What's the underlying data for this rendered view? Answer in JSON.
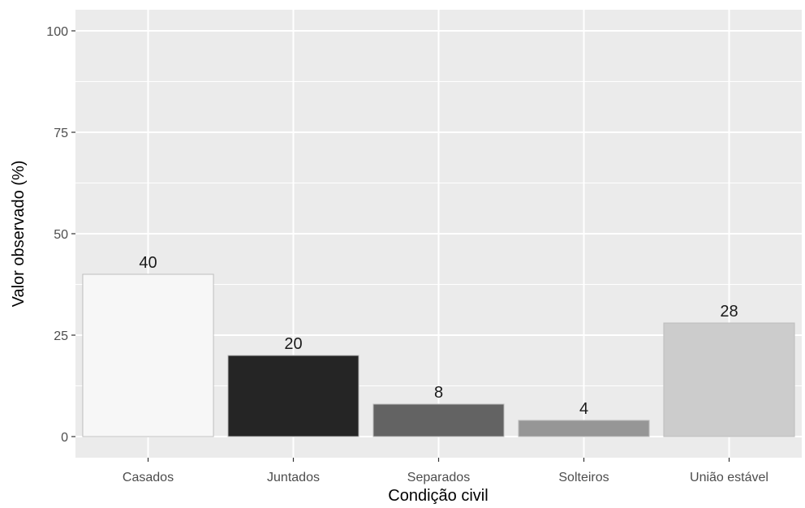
{
  "chart_data": {
    "type": "bar",
    "title": "",
    "xlabel": "Condição civil",
    "ylabel": "Valor observado (%)",
    "categories": [
      "Casados",
      "Juntados",
      "Separados",
      "Solteiros",
      "União estável"
    ],
    "values": [
      40,
      20,
      8,
      4,
      28
    ],
    "data_labels": [
      "40",
      "20",
      "8",
      "4",
      "28"
    ],
    "bar_colors": [
      "#f7f7f7",
      "#252525",
      "#636363",
      "#969696",
      "#cccccc"
    ],
    "ylim": [
      -2,
      103
    ],
    "yticks": [
      0,
      25,
      50,
      75,
      100
    ],
    "ytick_labels": [
      "0",
      "25",
      "50",
      "75",
      "100"
    ],
    "grid": true,
    "legend": "none",
    "panel_color": "#ebebeb",
    "grid_color": "#ffffff"
  }
}
